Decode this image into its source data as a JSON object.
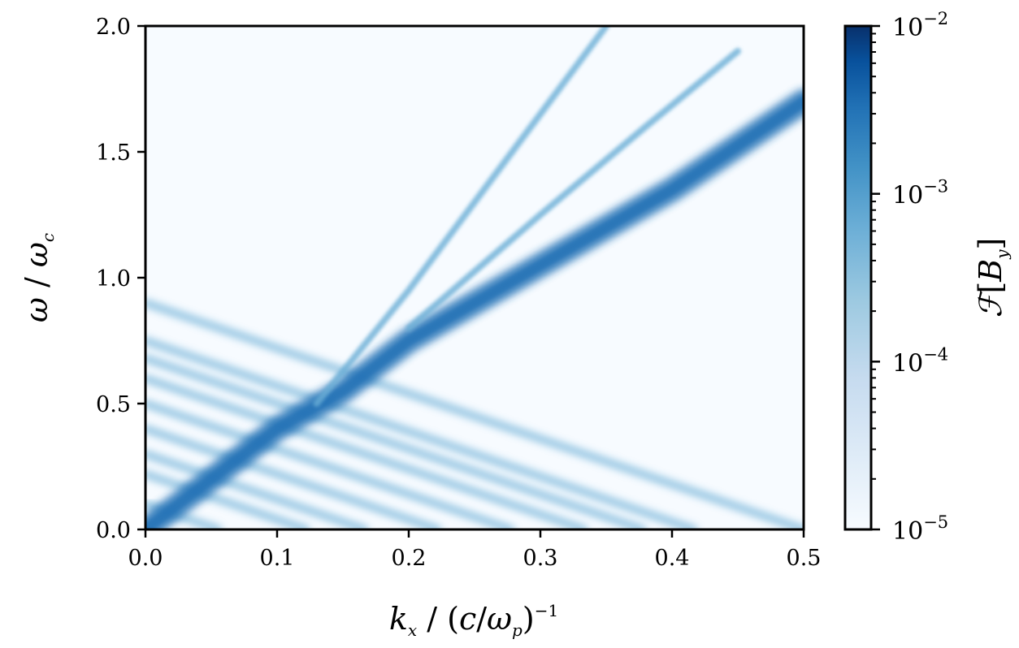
{
  "chart_data": {
    "type": "heatmap",
    "title": "",
    "xlabel": "k_x / (c/ω_p)^-1",
    "ylabel": "ω / ω_c",
    "xlim": [
      0.0,
      0.5
    ],
    "ylim": [
      0.0,
      2.0
    ],
    "xticks": [
      "0.0",
      "0.1",
      "0.2",
      "0.3",
      "0.4",
      "0.5"
    ],
    "yticks": [
      "0.0",
      "0.5",
      "1.0",
      "1.5",
      "2.0"
    ],
    "grid": false,
    "colormap": "Blues",
    "colorscale": "log",
    "colorbar": {
      "label": "F[B_y]",
      "range": [
        1e-05,
        0.01
      ],
      "ticks": [
        {
          "base": "10",
          "exp": "−5",
          "value": 1e-05
        },
        {
          "base": "10",
          "exp": "−4",
          "value": 0.0001
        },
        {
          "base": "10",
          "exp": "−3",
          "value": 0.001
        },
        {
          "base": "10",
          "exp": "−2",
          "value": 0.01
        }
      ]
    },
    "features": [
      {
        "name": "main-dispersion-band",
        "points": [
          [
            0.0,
            0.0
          ],
          [
            0.05,
            0.2
          ],
          [
            0.1,
            0.4
          ],
          [
            0.15,
            0.55
          ],
          [
            0.2,
            0.75
          ],
          [
            0.3,
            1.05
          ],
          [
            0.4,
            1.35
          ],
          [
            0.5,
            1.7
          ]
        ],
        "intensity": 0.0012
      },
      {
        "name": "light-line",
        "points": [
          [
            0.13,
            0.5
          ],
          [
            0.2,
            0.95
          ],
          [
            0.25,
            1.3
          ],
          [
            0.3,
            1.65
          ],
          [
            0.35,
            2.0
          ]
        ],
        "intensity": 0.0003
      },
      {
        "name": "secondary-line",
        "points": [
          [
            0.2,
            0.8
          ],
          [
            0.3,
            1.25
          ],
          [
            0.38,
            1.6
          ],
          [
            0.45,
            1.9
          ]
        ],
        "intensity": 0.00025
      },
      {
        "name": "downward-streaks",
        "origin_k": 0.0,
        "omega_start": [
          0.1,
          0.22,
          0.3,
          0.4,
          0.5,
          0.6,
          0.68,
          0.75,
          0.9
        ],
        "slope": -1.8,
        "intensity": 0.00015
      }
    ]
  }
}
